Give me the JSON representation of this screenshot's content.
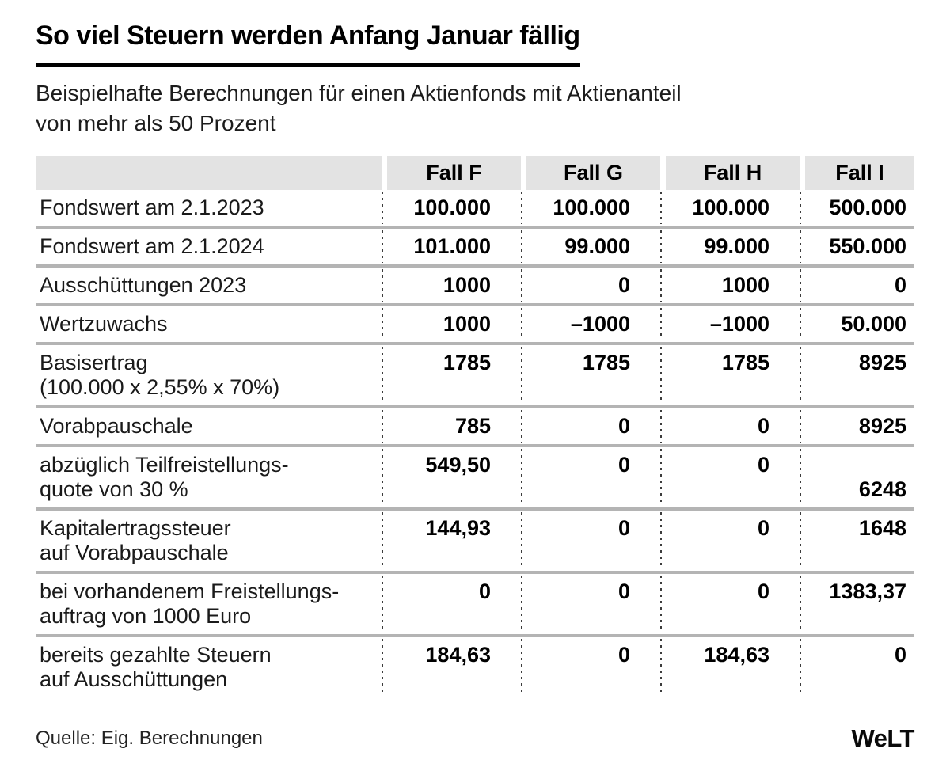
{
  "title": "So viel Steuern werden Anfang Januar fällig",
  "subtitle": "Beispielhafte Berechnungen für einen Aktienfonds mit Aktienanteil\nvon mehr als 50 Prozent",
  "chart_data": {
    "type": "table",
    "headers": [
      "",
      "Fall F",
      "Fall G",
      "Fall H",
      "Fall I"
    ],
    "rows": [
      {
        "label": "Fondswert am 2.1.2023",
        "values": [
          "100.000",
          "100.000",
          "100.000",
          "500.000"
        ]
      },
      {
        "label": "Fondswert am 2.1.2024",
        "values": [
          "101.000",
          "99.000",
          "99.000",
          "550.000"
        ]
      },
      {
        "label": "Ausschüttungen 2023",
        "values": [
          "1000",
          "0",
          "1000",
          "0"
        ]
      },
      {
        "label": "Wertzuwachs",
        "values": [
          "1000",
          "–1000",
          "–1000",
          "50.000"
        ]
      },
      {
        "label": "Basisertrag\n(100.000 x 2,55% x 70%)",
        "values": [
          "1785",
          "1785",
          "1785",
          "8925"
        ]
      },
      {
        "label": "Vorabpauschale",
        "values": [
          "785",
          "0",
          "0",
          "8925"
        ]
      },
      {
        "label": "abzüglich Teilfreistellungs-\nquote von 30 %",
        "values": [
          "549,50",
          "0",
          "0",
          "6248"
        ]
      },
      {
        "label": "Kapitalertragssteuer\nauf Vorabpauschale",
        "values": [
          "144,93",
          "0",
          "0",
          "1648"
        ]
      },
      {
        "label": "bei vorhandenem Freistellungs-\nauftrag von 1000 Euro",
        "values": [
          "0",
          "0",
          "0",
          "1383,37"
        ]
      },
      {
        "label": "bereits gezahlte Steuern\nauf Ausschüttungen",
        "values": [
          "184,63",
          "0",
          "184,63",
          "0"
        ]
      }
    ]
  },
  "footer": {
    "source": "Quelle: Eig. Berechnungen",
    "logo": "WeLT"
  },
  "colors": {
    "header_bg": "#e3e3e3",
    "divider": "#b4b4b4",
    "title_rule": "#000000"
  }
}
